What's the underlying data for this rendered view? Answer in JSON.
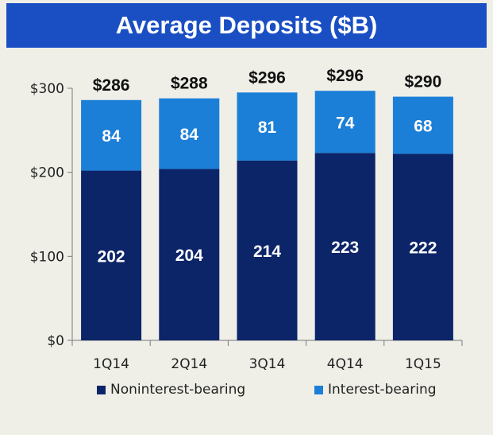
{
  "chart_data": {
    "type": "bar",
    "stacked": true,
    "title": "Average Deposits ($B)",
    "categories": [
      "1Q14",
      "2Q14",
      "3Q14",
      "4Q14",
      "1Q15"
    ],
    "series": [
      {
        "name": "Noninterest-bearing",
        "color": "#0c2468",
        "values": [
          202,
          204,
          214,
          223,
          222
        ],
        "labels": [
          "202",
          "204",
          "214",
          "223",
          "222"
        ]
      },
      {
        "name": "Interest-bearing",
        "color": "#1b7fd8",
        "values": [
          84,
          84,
          81,
          74,
          68
        ],
        "labels": [
          "84",
          "84",
          "81",
          "74",
          "68"
        ]
      }
    ],
    "totals": [
      "$286",
      "$288",
      "$296",
      "$296",
      "$290"
    ],
    "ylim": [
      0,
      300
    ],
    "yticks": [
      {
        "value": 0,
        "label": "$0"
      },
      {
        "value": 100,
        "label": "$100"
      },
      {
        "value": 200,
        "label": "$200"
      },
      {
        "value": 300,
        "label": "$300"
      }
    ],
    "legend_position": "bottom",
    "grid": false
  }
}
